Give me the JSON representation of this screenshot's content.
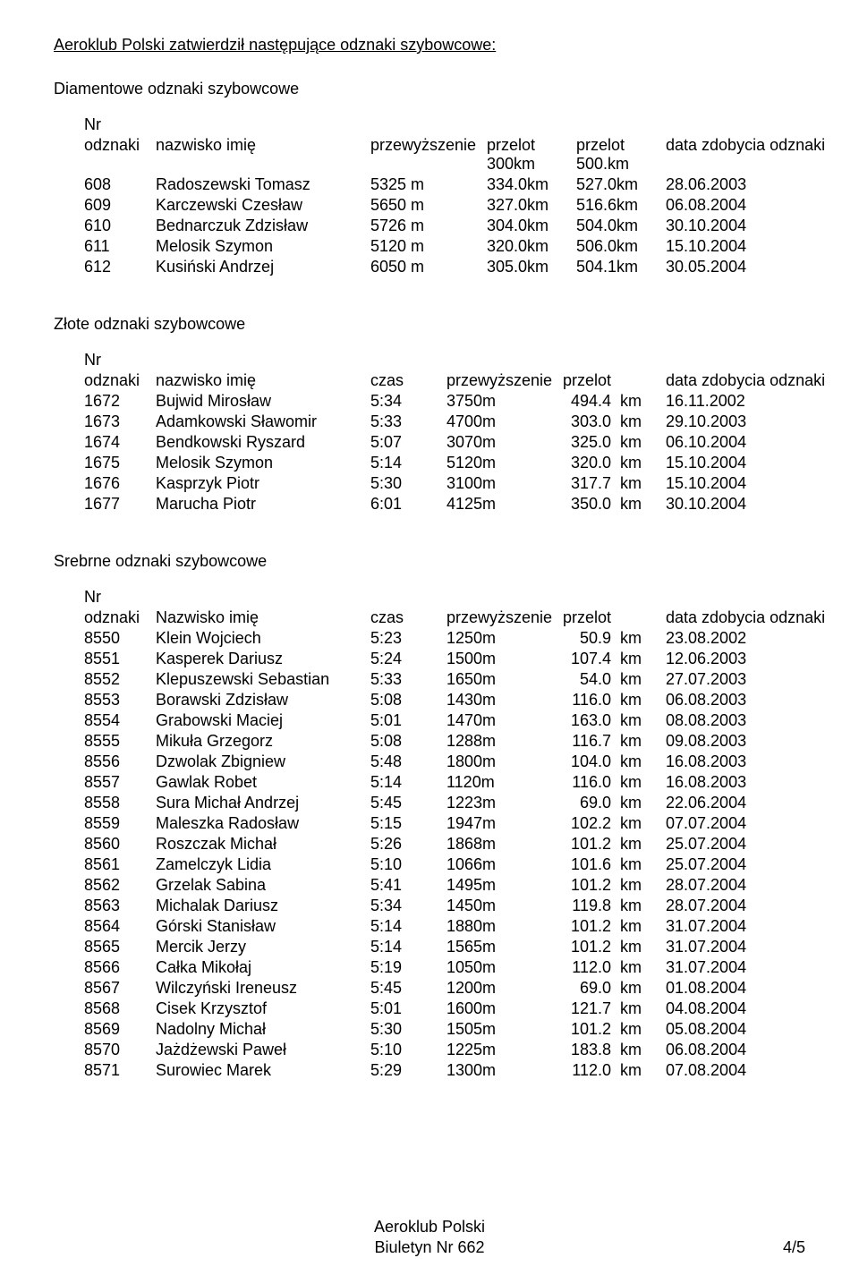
{
  "title_main": "Aeroklub Polski zatwierdził następujące odznaki szybowcowe:",
  "diamond": {
    "heading": "Diamentowe odznaki szybowcowe",
    "headers": {
      "nr1": "Nr",
      "nr2": "odznaki",
      "name": "nazwisko imię",
      "przew": "przewyższenie",
      "p300_1": "przelot",
      "p300_2": "300km",
      "p500_1": "przelot",
      "p500_2": "500.km",
      "date": "data zdobycia odznaki"
    },
    "rows": [
      {
        "nr": "608",
        "name": "Radoszewski Tomasz",
        "przew": "5325 m",
        "p300": "334.0km",
        "p500": "527.0km",
        "date": "28.06.2003"
      },
      {
        "nr": "609",
        "name": "Karczewski Czesław",
        "przew": "5650 m",
        "p300": "327.0km",
        "p500": "516.6km",
        "date": "06.08.2004"
      },
      {
        "nr": "610",
        "name": "Bednarczuk Zdzisław",
        "przew": "5726 m",
        "p300": "304.0km",
        "p500": "504.0km",
        "date": "30.10.2004"
      },
      {
        "nr": "611",
        "name": "Melosik Szymon",
        "przew": "5120 m",
        "p300": "320.0km",
        "p500": "506.0km",
        "date": "15.10.2004"
      },
      {
        "nr": "612",
        "name": "Kusiński Andrzej",
        "przew": "6050 m",
        "p300": "305.0km",
        "p500": "504.1km",
        "date": "30.05.2004"
      }
    ]
  },
  "gold": {
    "heading": "Złote odznaki szybowcowe",
    "headers": {
      "nr1": "Nr",
      "nr2": "odznaki",
      "name": "nazwisko imię",
      "czas": "czas",
      "przew": "przewyższenie",
      "przelot": "przelot",
      "date": "data zdobycia odznaki"
    },
    "rows": [
      {
        "nr": "1672",
        "name": "Bujwid Mirosław",
        "czas": "5:34",
        "przew": "3750m",
        "p_val": "494.4",
        "p_unit": "km",
        "date": "16.11.2002"
      },
      {
        "nr": "1673",
        "name": "Adamkowski Sławomir",
        "czas": "5:33",
        "przew": "4700m",
        "p_val": "303.0",
        "p_unit": "km",
        "date": "29.10.2003"
      },
      {
        "nr": "1674",
        "name": "Bendkowski Ryszard",
        "czas": "5:07",
        "przew": "3070m",
        "p_val": "325.0",
        "p_unit": "km",
        "date": "06.10.2004"
      },
      {
        "nr": "1675",
        "name": "Melosik Szymon",
        "czas": "5:14",
        "przew": "5120m",
        "p_val": "320.0",
        "p_unit": "km",
        "date": "15.10.2004"
      },
      {
        "nr": "1676",
        "name": "Kasprzyk Piotr",
        "czas": "5:30",
        "przew": "3100m",
        "p_val": "317.7",
        "p_unit": "km",
        "date": "15.10.2004"
      },
      {
        "nr": "1677",
        "name": "Marucha Piotr",
        "czas": "6:01",
        "przew": "4125m",
        "p_val": "350.0",
        "p_unit": "km",
        "date": "30.10.2004"
      }
    ]
  },
  "silver": {
    "heading": "Srebrne odznaki szybowcowe",
    "headers": {
      "nr1": "Nr",
      "nr2": "odznaki",
      "name": "Nazwisko imię",
      "czas": "czas",
      "przew": "przewyższenie",
      "przelot": "przelot",
      "date": "data zdobycia odznaki"
    },
    "rows": [
      {
        "nr": "8550",
        "name": "Klein Wojciech",
        "czas": "5:23",
        "przew": "1250m",
        "p_val": "50.9",
        "p_unit": "km",
        "date": "23.08.2002"
      },
      {
        "nr": "8551",
        "name": "Kasperek Dariusz",
        "czas": "5:24",
        "przew": "1500m",
        "p_val": "107.4",
        "p_unit": "km",
        "date": "12.06.2003"
      },
      {
        "nr": "8552",
        "name": "Klepuszewski Sebastian",
        "czas": "5:33",
        "przew": "1650m",
        "p_val": "54.0",
        "p_unit": "km",
        "date": "27.07.2003"
      },
      {
        "nr": "8553",
        "name": "Borawski Zdzisław",
        "czas": "5:08",
        "przew": "1430m",
        "p_val": "116.0",
        "p_unit": "km",
        "date": "06.08.2003"
      },
      {
        "nr": "8554",
        "name": "Grabowski Maciej",
        "czas": "5:01",
        "przew": "1470m",
        "p_val": "163.0",
        "p_unit": "km",
        "date": "08.08.2003"
      },
      {
        "nr": "8555",
        "name": "Mikuła Grzegorz",
        "czas": "5:08",
        "przew": "1288m",
        "p_val": "116.7",
        "p_unit": "km",
        "date": "09.08.2003"
      },
      {
        "nr": "8556",
        "name": "Dzwolak Zbigniew",
        "czas": "5:48",
        "przew": "1800m",
        "p_val": "104.0",
        "p_unit": "km",
        "date": "16.08.2003"
      },
      {
        "nr": "8557",
        "name": "Gawlak Robet",
        "czas": "5:14",
        "przew": "1120m",
        "p_val": "116.0",
        "p_unit": "km",
        "date": "16.08.2003"
      },
      {
        "nr": "8558",
        "name": "Sura Michał Andrzej",
        "czas": "5:45",
        "przew": "1223m",
        "p_val": "69.0",
        "p_unit": "km",
        "date": "22.06.2004"
      },
      {
        "nr": "8559",
        "name": "Maleszka Radosław",
        "czas": "5:15",
        "przew": "1947m",
        "p_val": "102.2",
        "p_unit": "km",
        "date": "07.07.2004"
      },
      {
        "nr": "8560",
        "name": "Roszczak Michał",
        "czas": "5:26",
        "przew": "1868m",
        "p_val": "101.2",
        "p_unit": "km",
        "date": "25.07.2004"
      },
      {
        "nr": "8561",
        "name": "Zamelczyk Lidia",
        "czas": "5:10",
        "przew": "1066m",
        "p_val": "101.6",
        "p_unit": "km",
        "date": "25.07.2004"
      },
      {
        "nr": "8562",
        "name": "Grzelak Sabina",
        "czas": "5:41",
        "przew": "1495m",
        "p_val": "101.2",
        "p_unit": "km",
        "date": "28.07.2004"
      },
      {
        "nr": "8563",
        "name": "Michalak Dariusz",
        "czas": "5:34",
        "przew": "1450m",
        "p_val": "119.8",
        "p_unit": "km",
        "date": "28.07.2004"
      },
      {
        "nr": "8564",
        "name": "Górski Stanisław",
        "czas": "5:14",
        "przew": "1880m",
        "p_val": "101.2",
        "p_unit": "km",
        "date": "31.07.2004"
      },
      {
        "nr": "8565",
        "name": "Mercik Jerzy",
        "czas": "5:14",
        "przew": "1565m",
        "p_val": "101.2",
        "p_unit": "km",
        "date": "31.07.2004"
      },
      {
        "nr": "8566",
        "name": "Całka Mikołaj",
        "czas": "5:19",
        "przew": "1050m",
        "p_val": "112.0",
        "p_unit": "km",
        "date": "31.07.2004"
      },
      {
        "nr": "8567",
        "name": "Wilczyński Ireneusz",
        "czas": "5:45",
        "przew": "1200m",
        "p_val": "69.0",
        "p_unit": "km",
        "date": "01.08.2004"
      },
      {
        "nr": "8568",
        "name": "Cisek Krzysztof",
        "czas": "5:01",
        "przew": "1600m",
        "p_val": "121.7",
        "p_unit": "km",
        "date": "04.08.2004"
      },
      {
        "nr": "8569",
        "name": "Nadolny Michał",
        "czas": "5:30",
        "przew": "1505m",
        "p_val": "101.2",
        "p_unit": "km",
        "date": "05.08.2004"
      },
      {
        "nr": "8570",
        "name": "Jażdżewski Paweł",
        "czas": "5:10",
        "przew": "1225m",
        "p_val": "183.8",
        "p_unit": "km",
        "date": "06.08.2004"
      },
      {
        "nr": "8571",
        "name": "Surowiec Marek",
        "czas": "5:29",
        "przew": "1300m",
        "p_val": "112.0",
        "p_unit": "km",
        "date": "07.08.2004"
      }
    ]
  },
  "footer": {
    "line1": "Aeroklub Polski",
    "line2": "Biuletyn Nr 662",
    "page": "4/5"
  }
}
